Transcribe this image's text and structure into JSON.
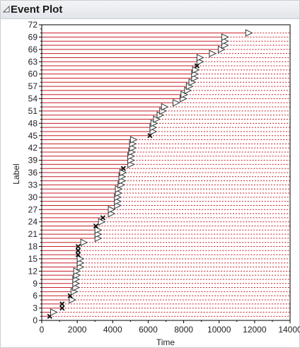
{
  "window": {
    "title": "Event Plot"
  },
  "colors": {
    "line": "#c81e28",
    "marker_fill": "#ffffff",
    "marker_stroke": "#333333",
    "frame": "#000000"
  },
  "chart_data": {
    "type": "scatter",
    "title": "Event Plot",
    "xlabel": "Time",
    "ylabel": "Label",
    "xlim": [
      0,
      14000
    ],
    "ylim": [
      0,
      72
    ],
    "xticks": [
      "0",
      "2000",
      "4000",
      "6000",
      "8000",
      "10000",
      "12000",
      "14000"
    ],
    "yticks": [
      "0",
      "3",
      "6",
      "9",
      "12",
      "15",
      "18",
      "21",
      "24",
      "27",
      "30",
      "33",
      "36",
      "39",
      "42",
      "45",
      "48",
      "51",
      "54",
      "57",
      "60",
      "63",
      "66",
      "69",
      "72"
    ],
    "grid": false,
    "events": [
      {
        "label": 1,
        "time": 450,
        "status": "failure"
      },
      {
        "label": 2,
        "time": 500,
        "status": "censored"
      },
      {
        "label": 3,
        "time": 1150,
        "status": "failure"
      },
      {
        "label": 4,
        "time": 1150,
        "status": "failure"
      },
      {
        "label": 5,
        "time": 1550,
        "status": "censored"
      },
      {
        "label": 6,
        "time": 1600,
        "status": "failure"
      },
      {
        "label": 7,
        "time": 1650,
        "status": "censored"
      },
      {
        "label": 8,
        "time": 1750,
        "status": "censored"
      },
      {
        "label": 9,
        "time": 1750,
        "status": "censored"
      },
      {
        "label": 10,
        "time": 1750,
        "status": "censored"
      },
      {
        "label": 11,
        "time": 1800,
        "status": "censored"
      },
      {
        "label": 12,
        "time": 1800,
        "status": "censored"
      },
      {
        "label": 13,
        "time": 2000,
        "status": "censored"
      },
      {
        "label": 14,
        "time": 2000,
        "status": "censored"
      },
      {
        "label": 15,
        "time": 2000,
        "status": "censored"
      },
      {
        "label": 16,
        "time": 2050,
        "status": "failure"
      },
      {
        "label": 17,
        "time": 2050,
        "status": "failure"
      },
      {
        "label": 18,
        "time": 2050,
        "status": "failure"
      },
      {
        "label": 19,
        "time": 2200,
        "status": "censored"
      },
      {
        "label": 20,
        "time": 3000,
        "status": "censored"
      },
      {
        "label": 21,
        "time": 3000,
        "status": "censored"
      },
      {
        "label": 22,
        "time": 3000,
        "status": "censored"
      },
      {
        "label": 23,
        "time": 3050,
        "status": "failure"
      },
      {
        "label": 24,
        "time": 3200,
        "status": "censored"
      },
      {
        "label": 25,
        "time": 3450,
        "status": "failure"
      },
      {
        "label": 26,
        "time": 3750,
        "status": "censored"
      },
      {
        "label": 27,
        "time": 3750,
        "status": "censored"
      },
      {
        "label": 28,
        "time": 4100,
        "status": "censored"
      },
      {
        "label": 29,
        "time": 4100,
        "status": "censored"
      },
      {
        "label": 30,
        "time": 4100,
        "status": "censored"
      },
      {
        "label": 31,
        "time": 4150,
        "status": "censored"
      },
      {
        "label": 32,
        "time": 4150,
        "status": "censored"
      },
      {
        "label": 33,
        "time": 4300,
        "status": "censored"
      },
      {
        "label": 34,
        "time": 4350,
        "status": "censored"
      },
      {
        "label": 35,
        "time": 4350,
        "status": "censored"
      },
      {
        "label": 36,
        "time": 4400,
        "status": "censored"
      },
      {
        "label": 37,
        "time": 4600,
        "status": "failure"
      },
      {
        "label": 38,
        "time": 4850,
        "status": "censored"
      },
      {
        "label": 39,
        "time": 4850,
        "status": "censored"
      },
      {
        "label": 40,
        "time": 4850,
        "status": "censored"
      },
      {
        "label": 41,
        "time": 4900,
        "status": "censored"
      },
      {
        "label": 42,
        "time": 4950,
        "status": "censored"
      },
      {
        "label": 43,
        "time": 4950,
        "status": "censored"
      },
      {
        "label": 44,
        "time": 5000,
        "status": "censored"
      },
      {
        "label": 45,
        "time": 6100,
        "status": "failure"
      },
      {
        "label": 46,
        "time": 6100,
        "status": "censored"
      },
      {
        "label": 47,
        "time": 6100,
        "status": "censored"
      },
      {
        "label": 48,
        "time": 6150,
        "status": "censored"
      },
      {
        "label": 49,
        "time": 6300,
        "status": "censored"
      },
      {
        "label": 50,
        "time": 6500,
        "status": "censored"
      },
      {
        "label": 51,
        "time": 6650,
        "status": "censored"
      },
      {
        "label": 52,
        "time": 6750,
        "status": "censored"
      },
      {
        "label": 53,
        "time": 7400,
        "status": "censored"
      },
      {
        "label": 54,
        "time": 7800,
        "status": "censored"
      },
      {
        "label": 55,
        "time": 7850,
        "status": "censored"
      },
      {
        "label": 56,
        "time": 8050,
        "status": "censored"
      },
      {
        "label": 57,
        "time": 8150,
        "status": "censored"
      },
      {
        "label": 58,
        "time": 8300,
        "status": "censored"
      },
      {
        "label": 59,
        "time": 8450,
        "status": "censored"
      },
      {
        "label": 60,
        "time": 8450,
        "status": "censored"
      },
      {
        "label": 61,
        "time": 8500,
        "status": "censored"
      },
      {
        "label": 62,
        "time": 8750,
        "status": "failure"
      },
      {
        "label": 63,
        "time": 8750,
        "status": "censored"
      },
      {
        "label": 64,
        "time": 8750,
        "status": "censored"
      },
      {
        "label": 65,
        "time": 9450,
        "status": "censored"
      },
      {
        "label": 66,
        "time": 9950,
        "status": "censored"
      },
      {
        "label": 67,
        "time": 10150,
        "status": "censored"
      },
      {
        "label": 68,
        "time": 10150,
        "status": "censored"
      },
      {
        "label": 69,
        "time": 10150,
        "status": "censored"
      },
      {
        "label": 70,
        "time": 11500,
        "status": "censored"
      }
    ]
  }
}
